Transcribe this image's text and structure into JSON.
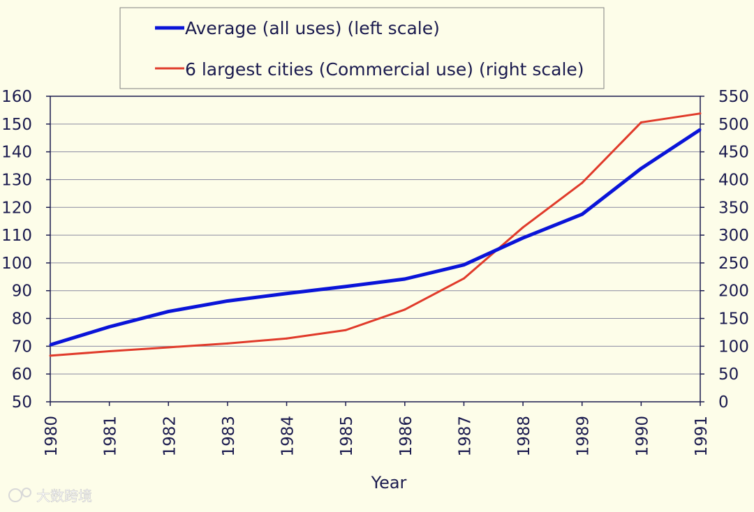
{
  "chart_data": {
    "type": "line",
    "title": "",
    "xlabel": "Year",
    "ylabel": "",
    "y2label": "",
    "categories": [
      "1980",
      "1981",
      "1982",
      "1983",
      "1984",
      "1985",
      "1986",
      "1987",
      "1988",
      "1989",
      "1990",
      "1991"
    ],
    "ylim": [
      50,
      160
    ],
    "y_ticks": [
      50,
      60,
      70,
      80,
      90,
      100,
      110,
      120,
      130,
      140,
      150,
      160
    ],
    "y2lim": [
      0,
      550
    ],
    "y2_ticks": [
      0,
      50,
      100,
      150,
      200,
      250,
      300,
      350,
      400,
      450,
      500,
      550
    ],
    "grid": true,
    "legend_position": "top",
    "series": [
      {
        "name": "Average (all uses) (left scale)",
        "axis": "left",
        "color": "#0a14d8",
        "values": [
          70.5,
          77,
          82.5,
          86.3,
          89,
          91.5,
          94.2,
          99.3,
          109,
          117.5,
          134,
          148
        ]
      },
      {
        "name": "6 largest cities (Commercial use) (right scale)",
        "axis": "right",
        "color": "#e03a2a",
        "values": [
          83,
          91,
          98,
          105,
          114,
          129,
          166,
          222,
          314,
          394,
          503,
          519
        ]
      }
    ]
  },
  "watermark": {
    "text": "大数跨境"
  }
}
